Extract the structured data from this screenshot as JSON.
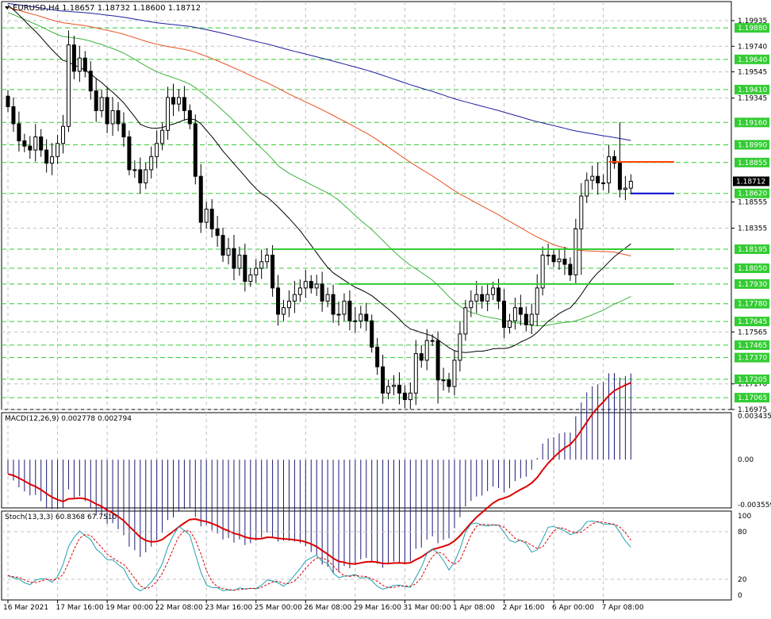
{
  "chart_data": {
    "type": "candlestick",
    "symbol_header": "EURUSD,H4",
    "ohlc_header": [
      "1.18657",
      "1.18732",
      "1.18600",
      "1.18712"
    ],
    "price_ylim": [
      1.16975,
      1.2008
    ],
    "price_ticks": [
      1.19935,
      1.1974,
      1.19545,
      1.19345,
      1.18555,
      1.18355,
      1.17565,
      1.1717,
      1.16975
    ],
    "price_tick_labels": [
      "1.19935",
      "1.19740",
      "1.19545",
      "1.19345",
      "1.18555",
      "1.18355",
      "1.17565",
      "1.17170",
      "1.16975"
    ],
    "level_prices": [
      1.1988,
      1.1964,
      1.1941,
      1.1916,
      1.1899,
      1.18855,
      1.1862,
      1.18195,
      1.1805,
      1.1793,
      1.1778,
      1.17645,
      1.17465,
      1.1737,
      1.17205,
      1.17065
    ],
    "level_labels": [
      "1.19880",
      "1.19640",
      "1.19410",
      "1.19160",
      "1.18990",
      "1.18855",
      "1.18620",
      "1.18195",
      "1.18050",
      "1.17930",
      "1.17780",
      "1.17645",
      "1.17465",
      "1.17370",
      "1.17205",
      "1.17065"
    ],
    "current_price": 1.18712,
    "current_price_label": "1.18712",
    "x_labels": [
      "16 Mar 2021",
      "17 Mar 16:00",
      "19 Mar 00:00",
      "22 Mar 08:00",
      "23 Mar 16:00",
      "25 Mar 00:00",
      "26 Mar 08:00",
      "29 Mar 16:00",
      "31 Mar 00:00",
      "1 Apr 08:00",
      "2 Apr 16:00",
      "6 Apr 00:00",
      "7 Apr 08:00"
    ],
    "closes": [
      1.1928,
      1.1915,
      1.1902,
      1.1898,
      1.1895,
      1.1905,
      1.1895,
      1.1885,
      1.189,
      1.19,
      1.1913,
      1.1975,
      1.1955,
      1.1965,
      1.1955,
      1.194,
      1.1925,
      1.1935,
      1.1915,
      1.1925,
      1.1915,
      1.1905,
      1.188,
      1.188,
      1.187,
      1.188,
      1.189,
      1.19,
      1.191,
      1.1935,
      1.193,
      1.1935,
      1.1925,
      1.1915,
      1.1875,
      1.184,
      1.185,
      1.1835,
      1.183,
      1.1815,
      1.182,
      1.1805,
      1.1815,
      1.1795,
      1.18,
      1.1805,
      1.181,
      1.1815,
      1.179,
      1.177,
      1.1775,
      1.178,
      1.1785,
      1.179,
      1.1795,
      1.179,
      1.1793,
      1.178,
      1.1785,
      1.177,
      1.177,
      1.178,
      1.1765,
      1.1765,
      1.177,
      1.1765,
      1.1745,
      1.173,
      1.171,
      1.1715,
      1.1716,
      1.171,
      1.1705,
      1.171,
      1.174,
      1.1735,
      1.175,
      1.175,
      1.172,
      1.172,
      1.1715,
      1.1735,
      1.1755,
      1.1775,
      1.178,
      1.1785,
      1.178,
      1.1785,
      1.179,
      1.178,
      1.176,
      1.1765,
      1.1775,
      1.177,
      1.1762,
      1.177,
      1.179,
      1.1815,
      1.1815,
      1.181,
      1.1812,
      1.1808,
      1.18,
      1.1835,
      1.186,
      1.1872,
      1.1875,
      1.187,
      1.187,
      1.189,
      1.1885,
      1.1865,
      1.1866,
      1.18712
    ],
    "ma_blue": {
      "closes_window": 200
    },
    "ma_red": {
      "period": 100
    },
    "ma_green": {
      "period": 50
    },
    "ma_black": {
      "period": 25
    },
    "hlines": [
      {
        "price": 1.1886,
        "color": "#ff4500",
        "start_index": 109
      },
      {
        "price": 1.1862,
        "color": "#0000cc",
        "start_index": 113
      },
      {
        "price": 1.18195,
        "color": "#33cc33",
        "start_index": 48
      },
      {
        "price": 1.1793,
        "color": "#33cc33",
        "start_index": 60
      }
    ],
    "macd_label": "MACD(12,26,9) 0.002778 0.002794",
    "macd_ylim": [
      -0.0038,
      0.0037
    ],
    "macd_tick_labels": [
      "0.003435",
      "0.00",
      "-0.003559"
    ],
    "macd_ticks": [
      0.003435,
      0.0,
      -0.003559
    ],
    "stoch_label": "Stoch(13,3,3) 60.8368 67.7510",
    "stoch_ylim": [
      -6,
      106
    ],
    "stoch_tick_labels": [
      "100",
      "80",
      "20",
      "0"
    ],
    "stoch_ticks": [
      100,
      80,
      20,
      0
    ],
    "colors": {
      "candle": "#000000",
      "grid": "#c0c0c0",
      "level": "#33cc33",
      "ma_blue": "#1e1ea0",
      "ma_red": "#e8501e",
      "ma_green": "#3cb43c",
      "ma_black": "#000000",
      "macd_hist": "#1a1a7a",
      "macd_signal": "#dd0000",
      "stoch_main": "#20a0b0",
      "stoch_signal": "#dd0000",
      "current_price_bg": "#000000"
    }
  }
}
